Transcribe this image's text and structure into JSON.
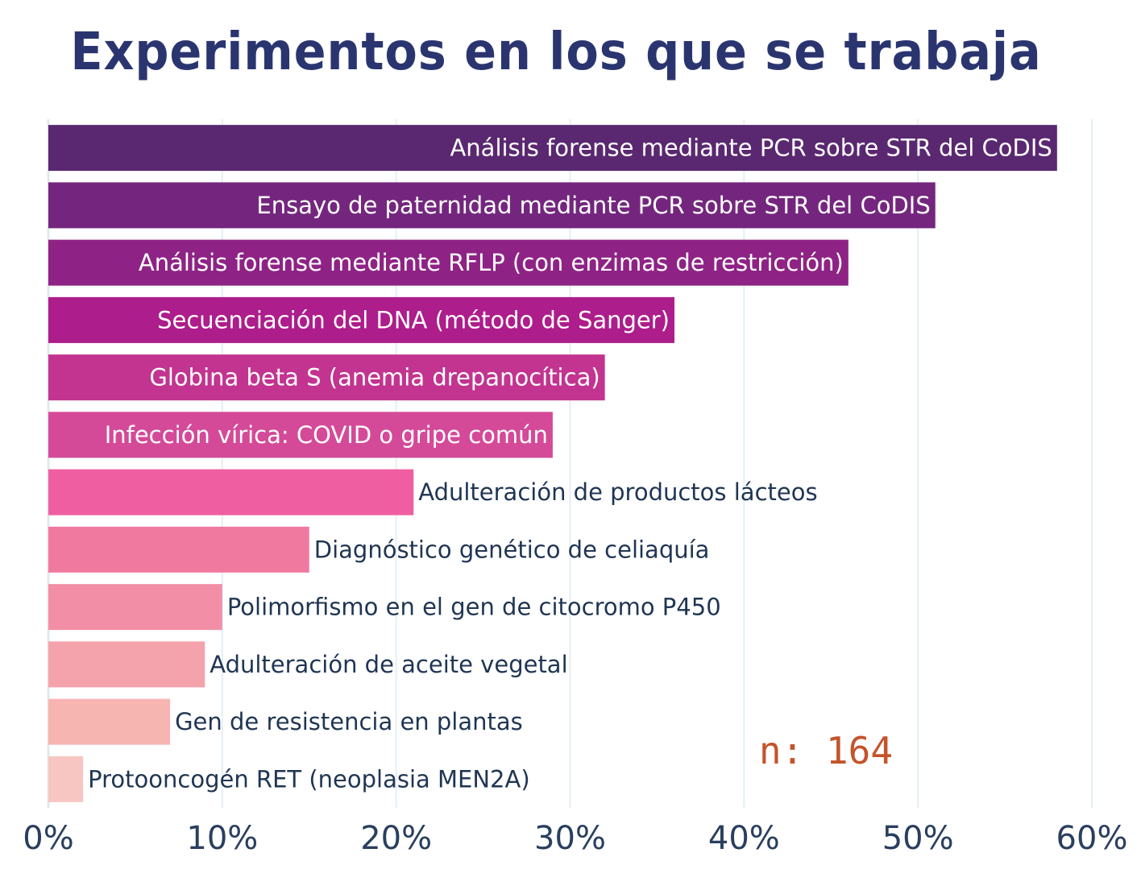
{
  "chart_data": {
    "type": "bar",
    "orientation": "horizontal",
    "title": "Experimentos en los que se trabaja",
    "xlabel": "",
    "ylabel": "",
    "xlim": [
      0,
      60
    ],
    "x_tick_values": [
      0,
      10,
      20,
      30,
      40,
      50,
      60
    ],
    "x_tick_labels": [
      "0%",
      "10%",
      "20%",
      "30%",
      "40%",
      "50%",
      "60%"
    ],
    "grid": true,
    "annotation": "n: 164",
    "annotation_color": "#c4542b",
    "title_color": "#2a3570",
    "categories": [
      "Análisis forense mediante PCR sobre STR del CoDIS",
      "Ensayo de paternidad mediante PCR sobre STR del CoDIS",
      "Análisis forense mediante RFLP (con enzimas de restricción)",
      "Secuenciación del DNA (método de Sanger)",
      "Globina beta S (anemia drepanocítica)",
      "Infección vírica: COVID o gripe común",
      "Adulteración de productos lácteos",
      "Diagnóstico genético de celiaquía",
      "Polimorfismo en el gen de citocromo P450",
      "Adulteración de aceite vegetal",
      "Gen de resistencia en plantas",
      "Protooncogén RET (neoplasia MEN2A)"
    ],
    "values": [
      58,
      51,
      46,
      36,
      32,
      29,
      21,
      15,
      10,
      9,
      7,
      2
    ],
    "unit": "%",
    "colors": [
      "#5a2870",
      "#74267e",
      "#8e2385",
      "#ad1d8b",
      "#c2348f",
      "#d44a98",
      "#ef5ea0",
      "#f07a9f",
      "#f28fa6",
      "#f4a2ab",
      "#f7b5b2",
      "#f7c6c2"
    ],
    "label_inside": [
      true,
      true,
      true,
      true,
      true,
      true,
      false,
      false,
      false,
      false,
      false,
      false
    ],
    "label_color_inside": "#ffffff",
    "label_color_outside": "#1f3553"
  }
}
